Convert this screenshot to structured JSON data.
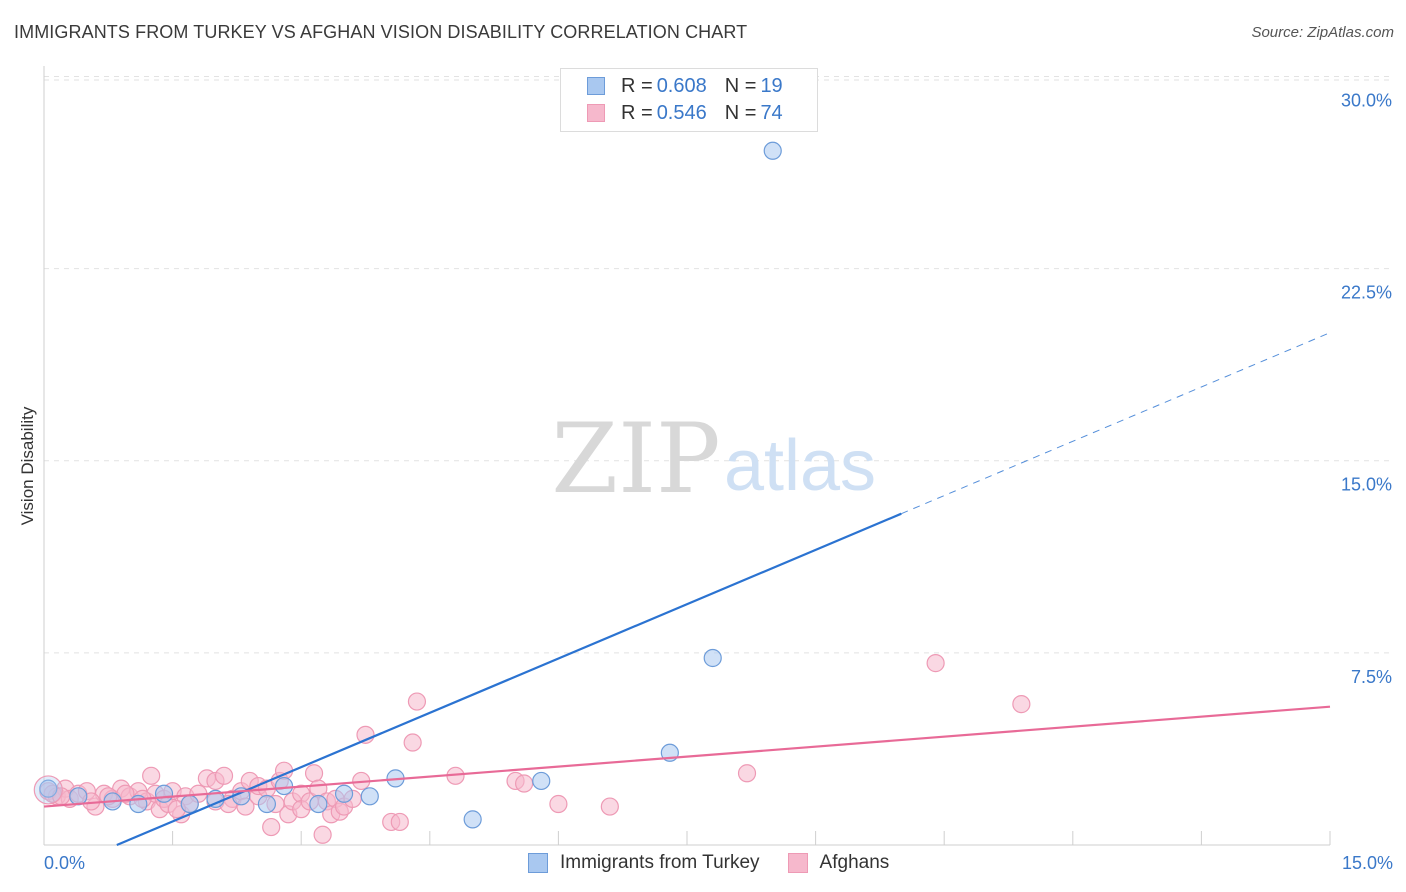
{
  "header": {
    "title": "IMMIGRANTS FROM TURKEY VS AFGHAN VISION DISABILITY CORRELATION CHART",
    "source": "Source: ZipAtlas.com"
  },
  "watermark": {
    "zip": "ZIP",
    "atlas": "atlas"
  },
  "legend": {
    "rows": [
      {
        "r_label": "R = ",
        "r_value": "0.608",
        "n_label": "N = ",
        "n_value": "19"
      },
      {
        "r_label": "R = ",
        "r_value": "0.546",
        "n_label": "N = ",
        "n_value": "74"
      }
    ]
  },
  "colors": {
    "blue": "#3a78c9",
    "blue_fill": "#a9c8f0",
    "blue_stroke": "#6d9cd9",
    "blue_line": "#2b73d1",
    "pink": "#e8729b",
    "pink_fill": "#f6b8cc",
    "pink_stroke": "#ee9ab5",
    "pink_line": "#e86a97",
    "axis_label": "#3a78c9",
    "grid": "#e2e2e2"
  },
  "chart_data": {
    "type": "scatter",
    "title": "IMMIGRANTS FROM TURKEY VS AFGHAN VISION DISABILITY CORRELATION CHART",
    "xlabel": "",
    "ylabel": "Vision Disability",
    "xlim": [
      0,
      15
    ],
    "ylim": [
      0,
      30.8
    ],
    "x_tick_labels": [
      "0.0%",
      "15.0%"
    ],
    "y_ticks": [
      7.5,
      15.0,
      22.5,
      30.0
    ],
    "y_tick_labels": [
      "7.5%",
      "15.0%",
      "22.5%",
      "30.0%"
    ],
    "series": [
      {
        "name": "Immigrants from Turkey",
        "r": 0.608,
        "n": 19,
        "points": [
          [
            0.05,
            2.2
          ],
          [
            0.8,
            1.7
          ],
          [
            1.1,
            1.6
          ],
          [
            1.4,
            2.0
          ],
          [
            1.7,
            1.6
          ],
          [
            2.0,
            1.8
          ],
          [
            2.3,
            1.9
          ],
          [
            2.6,
            1.6
          ],
          [
            2.8,
            2.3
          ],
          [
            3.2,
            1.6
          ],
          [
            3.5,
            2.0
          ],
          [
            3.8,
            1.9
          ],
          [
            4.1,
            2.6
          ],
          [
            5.0,
            1.0
          ],
          [
            5.8,
            2.5
          ],
          [
            7.3,
            3.6
          ],
          [
            7.8,
            7.3
          ],
          [
            8.5,
            27.1
          ],
          [
            0.4,
            1.9
          ]
        ],
        "trend": {
          "x0": 0,
          "y0": -1.2,
          "x1": 15,
          "y1": 20.0,
          "solid_until_x": 10.0
        }
      },
      {
        "name": "Afghans",
        "r": 0.546,
        "n": 74,
        "points": [
          [
            0.05,
            2.1
          ],
          [
            0.15,
            1.9
          ],
          [
            0.25,
            2.2
          ],
          [
            0.3,
            1.8
          ],
          [
            0.4,
            2.0
          ],
          [
            0.5,
            2.1
          ],
          [
            0.6,
            1.5
          ],
          [
            0.7,
            2.0
          ],
          [
            0.8,
            1.8
          ],
          [
            0.9,
            2.2
          ],
          [
            1.0,
            1.9
          ],
          [
            1.1,
            2.1
          ],
          [
            1.2,
            1.7
          ],
          [
            1.25,
            2.7
          ],
          [
            1.3,
            2.0
          ],
          [
            1.35,
            1.4
          ],
          [
            1.4,
            1.8
          ],
          [
            1.45,
            1.6
          ],
          [
            1.5,
            2.1
          ],
          [
            1.6,
            1.2
          ],
          [
            1.65,
            1.9
          ],
          [
            1.7,
            1.6
          ],
          [
            1.8,
            2.0
          ],
          [
            1.9,
            2.6
          ],
          [
            2.0,
            1.7
          ],
          [
            2.0,
            2.5
          ],
          [
            2.1,
            2.7
          ],
          [
            2.2,
            1.8
          ],
          [
            2.3,
            2.1
          ],
          [
            2.35,
            1.5
          ],
          [
            2.4,
            2.5
          ],
          [
            2.5,
            1.9
          ],
          [
            2.5,
            2.3
          ],
          [
            2.6,
            2.2
          ],
          [
            2.65,
            0.7
          ],
          [
            2.7,
            1.6
          ],
          [
            2.75,
            2.5
          ],
          [
            2.8,
            2.9
          ],
          [
            2.85,
            1.2
          ],
          [
            2.9,
            1.7
          ],
          [
            3.0,
            2.0
          ],
          [
            3.0,
            1.4
          ],
          [
            3.1,
            1.7
          ],
          [
            3.15,
            2.8
          ],
          [
            3.2,
            2.2
          ],
          [
            3.25,
            0.4
          ],
          [
            3.3,
            1.7
          ],
          [
            3.35,
            1.2
          ],
          [
            3.4,
            1.8
          ],
          [
            3.45,
            1.3
          ],
          [
            3.5,
            1.5
          ],
          [
            3.6,
            1.8
          ],
          [
            3.7,
            2.5
          ],
          [
            3.75,
            4.3
          ],
          [
            4.05,
            0.9
          ],
          [
            4.15,
            0.9
          ],
          [
            4.3,
            4.0
          ],
          [
            4.35,
            5.6
          ],
          [
            4.8,
            2.7
          ],
          [
            5.5,
            2.5
          ],
          [
            5.6,
            2.4
          ],
          [
            6.0,
            1.6
          ],
          [
            6.6,
            1.5
          ],
          [
            8.2,
            2.8
          ],
          [
            10.4,
            7.1
          ],
          [
            11.4,
            5.5
          ],
          [
            0.1,
            2.0
          ],
          [
            0.2,
            1.9
          ],
          [
            0.55,
            1.7
          ],
          [
            0.75,
            1.9
          ],
          [
            0.95,
            2.0
          ],
          [
            1.15,
            1.8
          ],
          [
            1.55,
            1.4
          ],
          [
            2.15,
            1.6
          ]
        ],
        "trend": {
          "x0": 0,
          "y0": 1.5,
          "x1": 15,
          "y1": 5.4,
          "solid_until_x": 15
        }
      }
    ]
  },
  "bottom_legend": {
    "items": [
      {
        "label": "Immigrants from Turkey"
      },
      {
        "label": "Afghans"
      }
    ]
  }
}
